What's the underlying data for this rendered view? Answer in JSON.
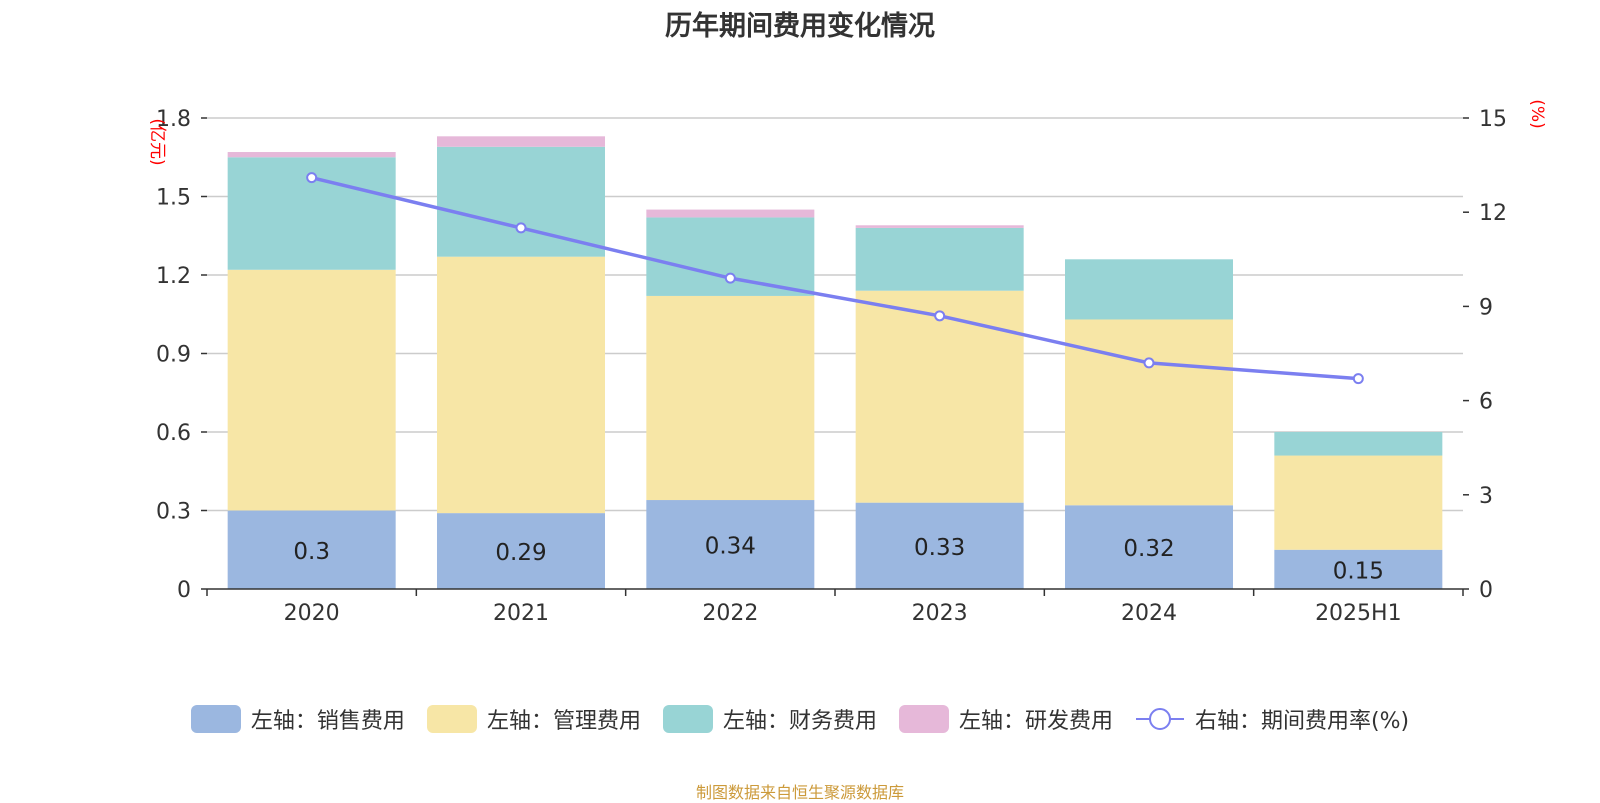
{
  "title": "历年期间费用变化情况",
  "source": "制图数据来自恒生聚源数据库",
  "colors": {
    "sales": "#9bb7e0",
    "admin": "#f7e6a6",
    "finance": "#98d4d5",
    "rd": "#e6b8d9",
    "line": "#7b7ff0",
    "axis_unit": "#ff0000"
  },
  "chart_data": {
    "type": "bar",
    "title": "历年期间费用变化情况",
    "categories": [
      "2020",
      "2021",
      "2022",
      "2023",
      "2024",
      "2025H1"
    ],
    "left_axis": {
      "unit": "(亿元)",
      "ylim": [
        0,
        1.8
      ],
      "ticks": [
        "0",
        "0.3",
        "0.6",
        "0.9",
        "1.2",
        "1.5",
        "1.8"
      ]
    },
    "right_axis": {
      "unit": "(%)",
      "ylim": [
        0,
        15
      ],
      "ticks": [
        "0",
        "3",
        "6",
        "9",
        "12",
        "15"
      ]
    },
    "series": [
      {
        "name": "左轴：销售费用",
        "type": "bar",
        "stack": "total",
        "values": [
          0.3,
          0.29,
          0.34,
          0.33,
          0.32,
          0.15
        ],
        "labels": [
          "0.3",
          "0.29",
          "0.34",
          "0.33",
          "0.32",
          "0.15"
        ]
      },
      {
        "name": "左轴：管理费用",
        "type": "bar",
        "stack": "total",
        "values": [
          0.92,
          0.98,
          0.78,
          0.81,
          0.71,
          0.36
        ]
      },
      {
        "name": "左轴：财务费用",
        "type": "bar",
        "stack": "total",
        "values": [
          0.43,
          0.42,
          0.3,
          0.24,
          0.23,
          0.09
        ]
      },
      {
        "name": "左轴：研发费用",
        "type": "bar",
        "stack": "total",
        "values": [
          0.02,
          0.04,
          0.03,
          0.01,
          0.0,
          0.0
        ]
      },
      {
        "name": "右轴：期间费用率(%)",
        "type": "line",
        "axis": "right",
        "values": [
          13.1,
          11.5,
          9.9,
          8.7,
          7.2,
          6.7
        ]
      }
    ],
    "grid": true,
    "legend": "bottom"
  }
}
